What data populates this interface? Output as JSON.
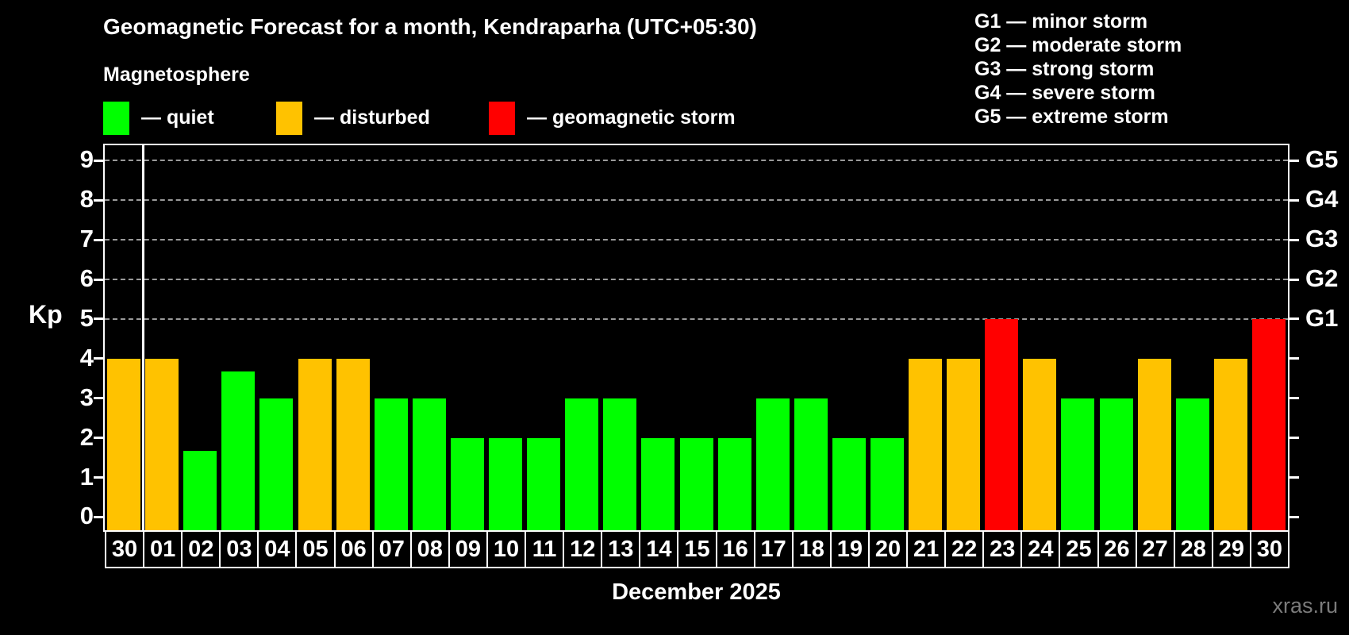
{
  "header": {
    "title": "Geomagnetic Forecast for a month, Kendraparha (UTC+05:30)",
    "subtitle": "Magnetosphere"
  },
  "legend": {
    "items": [
      {
        "name": "quiet",
        "label": "— quiet",
        "color": "#00ff00"
      },
      {
        "name": "disturbed",
        "label": "— disturbed",
        "color": "#ffc200"
      },
      {
        "name": "storm",
        "label": "— geomagnetic storm",
        "color": "#ff0000"
      }
    ]
  },
  "g_scale": {
    "items": [
      {
        "code": "G1",
        "label": "G1 — minor storm"
      },
      {
        "code": "G2",
        "label": "G2 — moderate storm"
      },
      {
        "code": "G3",
        "label": "G3 — strong storm"
      },
      {
        "code": "G4",
        "label": "G4 — severe storm"
      },
      {
        "code": "G5",
        "label": "G5 — extreme storm"
      }
    ]
  },
  "axes": {
    "y_label": "Kp",
    "x_label": "December 2025",
    "y_ticks": [
      "0",
      "1",
      "2",
      "3",
      "4",
      "5",
      "6",
      "7",
      "8",
      "9"
    ],
    "right_labels": [
      {
        "text": "G1",
        "kp": 5
      },
      {
        "text": "G2",
        "kp": 6
      },
      {
        "text": "G3",
        "kp": 7
      },
      {
        "text": "G4",
        "kp": 8
      },
      {
        "text": "G5",
        "kp": 9
      }
    ]
  },
  "footer": {
    "watermark": "xras.ru"
  },
  "chart_data": {
    "type": "bar",
    "title": "Geomagnetic Forecast for a month, Kendraparha (UTC+05:30)",
    "xlabel": "December 2025",
    "ylabel": "Kp",
    "ylim": [
      0,
      9
    ],
    "gridlines_at": [
      5,
      6,
      7,
      8,
      9
    ],
    "legend_position": "top",
    "categories": [
      "30",
      "01",
      "02",
      "03",
      "04",
      "05",
      "06",
      "07",
      "08",
      "09",
      "10",
      "11",
      "12",
      "13",
      "14",
      "15",
      "16",
      "17",
      "18",
      "19",
      "20",
      "21",
      "22",
      "23",
      "24",
      "25",
      "26",
      "27",
      "28",
      "29",
      "30"
    ],
    "values": [
      4,
      4,
      1.67,
      3.67,
      3,
      4,
      4,
      3,
      3,
      2,
      2,
      2,
      3,
      3,
      2,
      2,
      2,
      3,
      3,
      2,
      2,
      4,
      4,
      5,
      4,
      3,
      3,
      4,
      3,
      4,
      5
    ],
    "statuses": [
      "disturbed",
      "disturbed",
      "quiet",
      "quiet",
      "quiet",
      "disturbed",
      "disturbed",
      "quiet",
      "quiet",
      "quiet",
      "quiet",
      "quiet",
      "quiet",
      "quiet",
      "quiet",
      "quiet",
      "quiet",
      "quiet",
      "quiet",
      "quiet",
      "quiet",
      "disturbed",
      "disturbed",
      "storm",
      "disturbed",
      "quiet",
      "quiet",
      "disturbed",
      "quiet",
      "disturbed",
      "storm"
    ],
    "colors": {
      "quiet": "#00ff00",
      "disturbed": "#ffc200",
      "storm": "#ff0000"
    },
    "separator_after_index": 0
  }
}
